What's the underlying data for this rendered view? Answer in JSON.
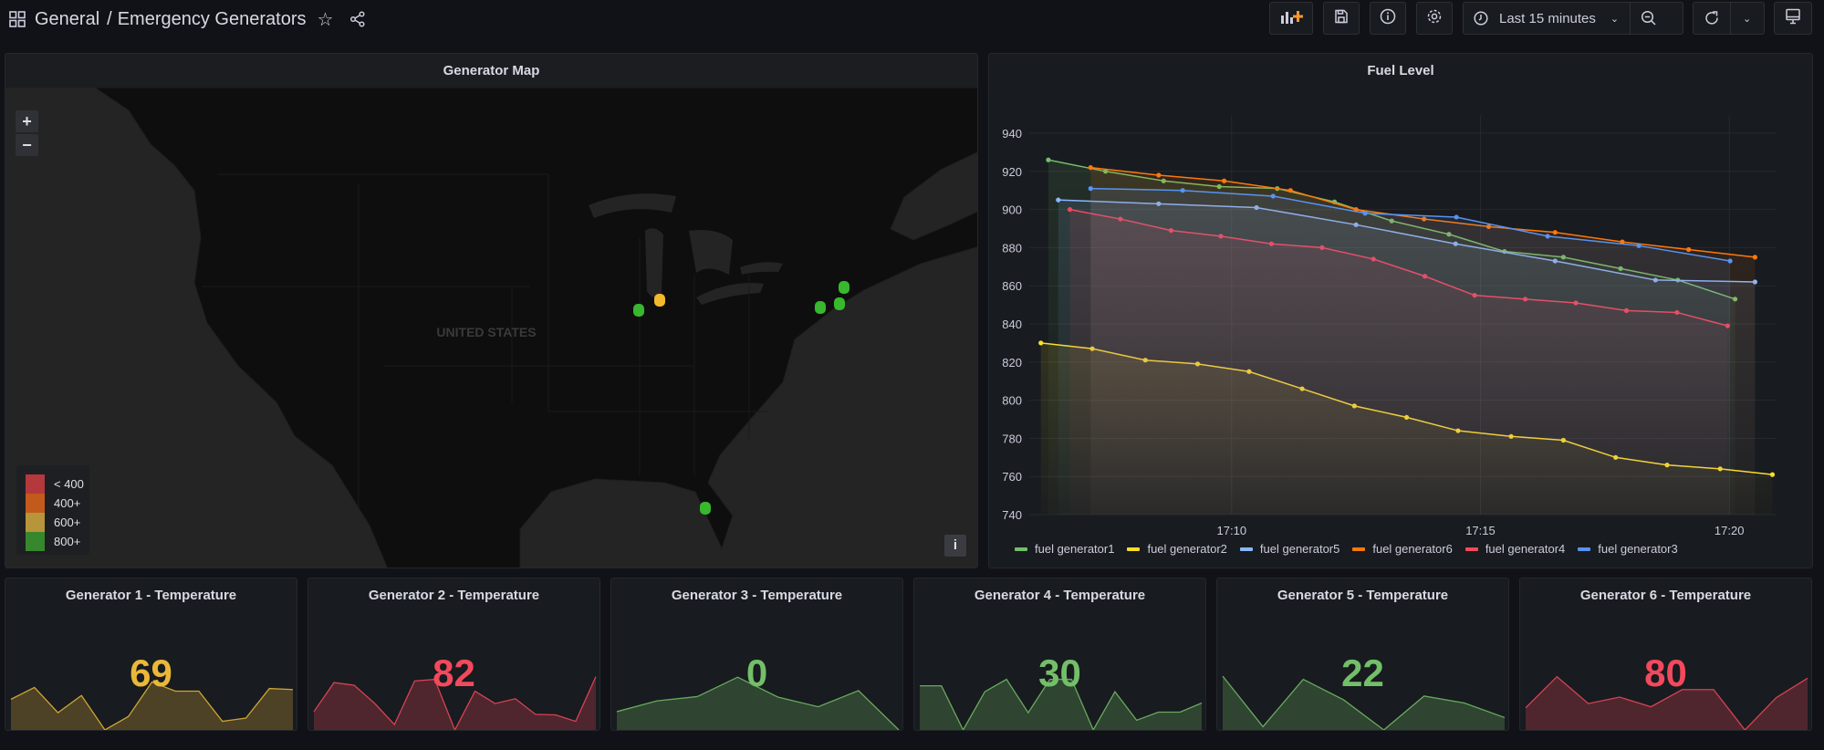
{
  "header": {
    "folder": "General",
    "separator": "/",
    "title": "Emergency Generators",
    "icons": [
      "dashboard-grid-icon",
      "star-icon",
      "share-icon"
    ]
  },
  "toolbar": {
    "add_panel_icon": "add-panel-icon",
    "save_icon": "save-icon",
    "info_icon": "info-icon",
    "settings_icon": "gear-icon",
    "time_range": "Last 15 minutes",
    "zoom_out_icon": "zoom-out-icon",
    "refresh_icon": "refresh-icon",
    "tv_icon": "tv-mode-icon"
  },
  "map_panel": {
    "title": "Generator Map",
    "zoom_in": "+",
    "zoom_out": "−",
    "country_label": "UNITED STATES",
    "info_button": "i",
    "legend": [
      {
        "label": "< 400",
        "color": "#b5383d"
      },
      {
        "label": "400+",
        "color": "#c25a1c"
      },
      {
        "label": "600+",
        "color": "#b8953a"
      },
      {
        "label": "800+",
        "color": "#37872d"
      }
    ],
    "markers": [
      {
        "status": "800+",
        "color": "#37b82d"
      },
      {
        "status": "600+",
        "color": "#f2b92c"
      },
      {
        "status": "800+",
        "color": "#37b82d"
      },
      {
        "status": "800+",
        "color": "#37b82d"
      },
      {
        "status": "800+",
        "color": "#37b82d"
      },
      {
        "status": "800+",
        "color": "#37b82d"
      }
    ]
  },
  "fuel_panel": {
    "title": "Fuel Level"
  },
  "chart_data": {
    "type": "line",
    "title": "Fuel Level",
    "xlabel": "",
    "ylabel": "",
    "xlim": [
      "17:05:56",
      "17:20:57"
    ],
    "ylim": [
      740,
      940
    ],
    "x_ticks": [
      "17:10",
      "17:15",
      "17:20"
    ],
    "y_ticks": [
      740,
      760,
      780,
      800,
      820,
      840,
      860,
      880,
      900,
      920,
      940
    ],
    "grid": true,
    "legend_position": "bottom",
    "series": [
      {
        "name": "fuel generator1",
        "color": "#73bf69",
        "x": [
          "17:06:19",
          "17:07:28",
          "17:08:38",
          "17:09:45",
          "17:10:55",
          "17:12:04",
          "17:13:13",
          "17:14:22",
          "17:15:29",
          "17:16:40",
          "17:17:49",
          "17:18:58",
          "17:20:07"
        ],
        "values": [
          926,
          920,
          915,
          912,
          911,
          904,
          894,
          887,
          878,
          875,
          869,
          863,
          853
        ]
      },
      {
        "name": "fuel generator2",
        "color": "#fade2a",
        "x": [
          "17:06:10",
          "17:07:12",
          "17:08:16",
          "17:09:19",
          "17:10:21",
          "17:11:25",
          "17:12:28",
          "17:13:31",
          "17:14:33",
          "17:15:37",
          "17:16:40",
          "17:17:43",
          "17:18:45",
          "17:19:49",
          "17:20:52"
        ],
        "values": [
          830,
          827,
          821,
          819,
          815,
          806,
          797,
          791,
          784,
          781,
          779,
          770,
          766,
          764,
          761
        ]
      },
      {
        "name": "fuel generator5",
        "color": "#8ab8ff",
        "x": [
          "17:06:31",
          "17:08:32",
          "17:10:30",
          "17:12:30",
          "17:14:30",
          "17:16:30",
          "17:18:31",
          "17:20:31"
        ],
        "values": [
          905,
          903,
          901,
          892,
          882,
          873,
          863,
          862
        ]
      },
      {
        "name": "fuel generator6",
        "color": "#ff780a",
        "x": [
          "17:07:10",
          "17:08:32",
          "17:09:51",
          "17:11:11",
          "17:12:30",
          "17:13:52",
          "17:15:10",
          "17:16:30",
          "17:17:51",
          "17:19:11",
          "17:20:31"
        ],
        "values": [
          922,
          918,
          915,
          910,
          900,
          895,
          891,
          888,
          883,
          879,
          875
        ]
      },
      {
        "name": "fuel generator4",
        "color": "#f2495c",
        "x": [
          "17:06:45",
          "17:07:46",
          "17:08:47",
          "17:09:47",
          "17:10:48",
          "17:11:49",
          "17:12:51",
          "17:13:53",
          "17:14:53",
          "17:15:54",
          "17:16:55",
          "17:17:56",
          "17:18:57",
          "17:19:58"
        ],
        "values": [
          900,
          895,
          889,
          886,
          882,
          880,
          874,
          865,
          855,
          853,
          851,
          847,
          846,
          839
        ]
      },
      {
        "name": "fuel generator3",
        "color": "#5794f2",
        "x": [
          "17:07:10",
          "17:09:01",
          "17:10:50",
          "17:12:41",
          "17:14:31",
          "17:16:21",
          "17:18:11",
          "17:20:01"
        ],
        "values": [
          911,
          910,
          907,
          898,
          896,
          886,
          881,
          873
        ]
      }
    ]
  },
  "stat_panels": [
    {
      "title": "Generator 1 - Temperature",
      "value": "69",
      "color": "#eab839",
      "sparkline": [
        0.57,
        0.79,
        0.32,
        0.64,
        0,
        0.25,
        0.89,
        0.72,
        0.72,
        0.16,
        0.22,
        0.77,
        0.75
      ]
    },
    {
      "title": "Generator 2 - Temperature",
      "value": "82",
      "color": "#f2495c",
      "sparkline": [
        0.34,
        0.88,
        0.83,
        0.5,
        0.1,
        0.91,
        0.94,
        0,
        0.72,
        0.49,
        0.58,
        0.29,
        0.28,
        0.16,
        0.99
      ]
    },
    {
      "title": "Generator 3 - Temperature",
      "value": "0",
      "color": "#73bf69",
      "sparkline": [
        0.34,
        0.54,
        0.62,
        0.98,
        0.61,
        0.43,
        0.73,
        0
      ]
    },
    {
      "title": "Generator 4 - Temperature",
      "value": "30",
      "color": "#73bf69",
      "sparkline": [
        0.82,
        0.82,
        0,
        0.71,
        0.94,
        0.32,
        0.94,
        0.94,
        0,
        0.71,
        0.18,
        0.33,
        0.33,
        0.5
      ]
    },
    {
      "title": "Generator 5 - Temperature",
      "value": "22",
      "color": "#73bf69",
      "sparkline": [
        1,
        0.06,
        0.94,
        0.56,
        0,
        0.63,
        0.5,
        0.23
      ]
    },
    {
      "title": "Generator 6 - Temperature",
      "value": "80",
      "color": "#f2495c",
      "sparkline": [
        0.41,
        0.99,
        0.49,
        0.61,
        0.43,
        0.75,
        0.75,
        0,
        0.6,
        0.96
      ]
    }
  ]
}
